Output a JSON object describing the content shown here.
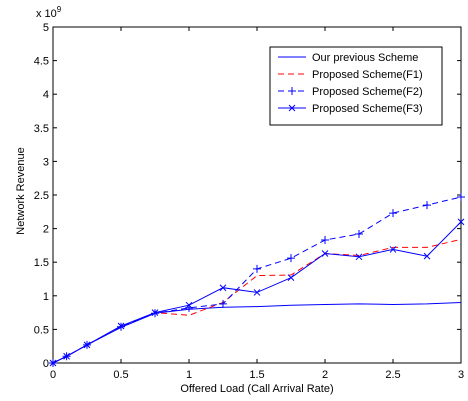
{
  "chart_data": {
    "type": "line",
    "title": "",
    "xlabel": "Offered Load (Call Arrival Rate)",
    "ylabel": "Network Revenue",
    "xlim": [
      0,
      3
    ],
    "ylim": [
      0,
      5
    ],
    "y_exponent_label": "x 10",
    "y_exponent_power": "9",
    "grid": false,
    "legend_position": "top-right",
    "x_ticks": [
      0,
      0.5,
      1,
      1.5,
      2,
      2.5,
      3
    ],
    "x_tick_labels": [
      "0",
      "0.5",
      "1",
      "1.5",
      "2",
      "2.5",
      "3"
    ],
    "y_ticks": [
      0,
      0.5,
      1,
      1.5,
      2,
      2.5,
      3,
      3.5,
      4,
      4.5,
      5
    ],
    "y_tick_labels": [
      "0",
      "0.5",
      "1",
      "1.5",
      "2",
      "2.5",
      "3",
      "3.5",
      "4",
      "4.5",
      "5"
    ],
    "series": [
      {
        "name": "Our previous Scheme",
        "color": "#0000ff",
        "line_style": "solid",
        "marker": "none",
        "x": [
          0,
          0.1,
          0.25,
          0.5,
          0.75,
          1,
          1.25,
          1.5,
          1.75,
          2,
          2.25,
          2.5,
          2.75,
          3
        ],
        "y": [
          0,
          0.1,
          0.27,
          0.53,
          0.74,
          0.8,
          0.83,
          0.84,
          0.86,
          0.87,
          0.88,
          0.87,
          0.88,
          0.9
        ]
      },
      {
        "name": "Proposed Scheme(F1)",
        "color": "#ff0000",
        "line_style": "dashed",
        "marker": "none",
        "x": [
          0,
          0.1,
          0.25,
          0.5,
          0.75,
          1,
          1.25,
          1.5,
          1.75,
          2,
          2.25,
          2.5,
          2.75,
          3
        ],
        "y": [
          0,
          0.1,
          0.27,
          0.54,
          0.75,
          0.71,
          0.9,
          1.3,
          1.31,
          1.63,
          1.6,
          1.72,
          1.72,
          1.84
        ]
      },
      {
        "name": "Proposed Scheme(F2)",
        "color": "#0000ff",
        "line_style": "dashed",
        "marker": "plus",
        "x": [
          0,
          0.1,
          0.25,
          0.5,
          0.75,
          1,
          1.25,
          1.5,
          1.75,
          2,
          2.25,
          2.5,
          2.75,
          3
        ],
        "y": [
          0,
          0.1,
          0.27,
          0.54,
          0.74,
          0.82,
          0.88,
          1.4,
          1.56,
          1.83,
          1.92,
          2.23,
          2.35,
          2.47
        ]
      },
      {
        "name": "Proposed Scheme(F3)",
        "color": "#0000ff",
        "line_style": "solid",
        "marker": "x",
        "x": [
          0,
          0.1,
          0.25,
          0.5,
          0.75,
          1,
          1.25,
          1.5,
          1.75,
          2,
          2.25,
          2.5,
          2.75,
          3
        ],
        "y": [
          0,
          0.1,
          0.27,
          0.55,
          0.75,
          0.86,
          1.12,
          1.05,
          1.27,
          1.63,
          1.58,
          1.69,
          1.59,
          2.1
        ]
      }
    ]
  }
}
